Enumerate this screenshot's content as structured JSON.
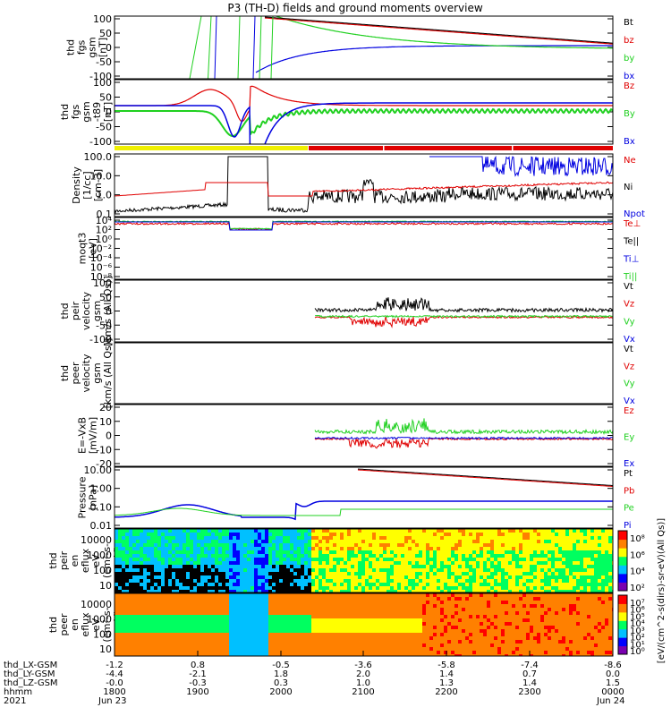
{
  "title": "P3 (TH-D) fields and ground moments overview",
  "colors": {
    "black": "#000000",
    "red": "#e00000",
    "green": "#20d020",
    "blue": "#0000e0",
    "yellow": "#f0f000"
  },
  "chart_data": [
    {
      "type": "line",
      "ylabel": [
        "thd",
        "fgs",
        "gsm",
        "[nT]"
      ],
      "yticks": [
        "100",
        "50",
        "0",
        "-50",
        "-100"
      ],
      "ylim": [
        -100,
        100
      ],
      "legend": [
        {
          "name": "Bt",
          "color": "#000000"
        },
        {
          "name": "bz",
          "color": "#e00000"
        },
        {
          "name": "by",
          "color": "#20d020"
        },
        {
          "name": "bx",
          "color": "#0000e0"
        }
      ]
    },
    {
      "type": "line",
      "ylabel": [
        "thd",
        "fgs",
        "gsm",
        "-t89",
        "[nT]"
      ],
      "yticks": [
        "100",
        "50",
        "0",
        "-50",
        "-100"
      ],
      "ylim": [
        -120,
        120
      ],
      "legend": [
        {
          "name": "Bz",
          "color": "#e00000"
        },
        {
          "name": "By",
          "color": "#20d020"
        },
        {
          "name": "Bx",
          "color": "#0000e0"
        }
      ]
    },
    {
      "type": "line",
      "ylabel": [
        "Density",
        "[1/cc]",
        "[cm-3]"
      ],
      "yticks": [
        "100.0",
        "10.0",
        "1.0",
        "0.1"
      ],
      "log": true,
      "legend": [
        {
          "name": "Ne",
          "color": "#e00000"
        },
        {
          "name": "Ni",
          "color": "#000000"
        },
        {
          "name": "Npot",
          "color": "#0000e0"
        }
      ]
    },
    {
      "type": "line",
      "ylabel": [
        "moqt3",
        "[eV]"
      ],
      "yticks": [
        "10⁴",
        "10²",
        "10⁰",
        "10⁻²",
        "10⁻⁴",
        "10⁻⁶",
        "10⁻⁸"
      ],
      "log": true,
      "legend": [
        {
          "name": "Te⊥",
          "color": "#e00000"
        },
        {
          "name": "Te||",
          "color": "#000000"
        },
        {
          "name": "Ti⊥",
          "color": "#0000e0"
        },
        {
          "name": "Ti||",
          "color": "#20d020"
        }
      ]
    },
    {
      "type": "line",
      "ylabel": [
        "thd",
        "peir",
        "velocity",
        "gsm",
        "[km/s (All Qs)]"
      ],
      "yticks": [
        "100",
        "50",
        "0",
        "-50",
        "-100"
      ],
      "ylim": [
        -100,
        100
      ],
      "legend": [
        {
          "name": "Vt",
          "color": "#000000"
        },
        {
          "name": "Vz",
          "color": "#e00000"
        },
        {
          "name": "Vy",
          "color": "#20d020"
        },
        {
          "name": "Vx",
          "color": "#0000e0"
        }
      ]
    },
    {
      "type": "line",
      "ylabel": [
        "thd",
        "peer",
        "velocity",
        "gsm",
        "[km/s (All Qs)]"
      ],
      "yticks": [],
      "legend": [
        {
          "name": "Vt",
          "color": "#000000"
        },
        {
          "name": "Vz",
          "color": "#e00000"
        },
        {
          "name": "Vy",
          "color": "#20d020"
        },
        {
          "name": "Vx",
          "color": "#0000e0"
        }
      ]
    },
    {
      "type": "line",
      "ylabel": [
        "E=-VxB",
        "[mV/m]"
      ],
      "yticks": [
        "20",
        "10",
        "0",
        "-10",
        "-20"
      ],
      "ylim": [
        -20,
        20
      ],
      "legend": [
        {
          "name": "Ez",
          "color": "#e00000"
        },
        {
          "name": "Ey",
          "color": "#20d020"
        },
        {
          "name": "Ex",
          "color": "#0000e0"
        }
      ]
    },
    {
      "type": "line",
      "ylabel": [
        "Pressure",
        "[nPa]"
      ],
      "yticks": [
        "10.00",
        "1.00",
        "0.10",
        "0.01"
      ],
      "log": true,
      "legend": [
        {
          "name": "Pt",
          "color": "#000000"
        },
        {
          "name": "Pb",
          "color": "#e00000"
        },
        {
          "name": "Pe",
          "color": "#20d020"
        },
        {
          "name": "Pi",
          "color": "#0000e0"
        }
      ]
    },
    {
      "type": "heatmap",
      "ylabel": [
        "thd",
        "peir",
        "en",
        "eflux",
        "eV",
        "(cm²-s-",
        "sr-eV)"
      ],
      "yticks": [
        "10000",
        "1000",
        "100",
        "10"
      ],
      "colorbar_ticks": [
        "10⁸",
        "10⁶",
        "10⁴",
        "10²"
      ]
    },
    {
      "type": "heatmap",
      "ylabel": [
        "thd",
        "peer",
        "en",
        "eflux",
        "eV",
        "(cm²-s-",
        "sr-eV)"
      ],
      "yticks": [
        "10000",
        "1000",
        "100",
        "10"
      ],
      "colorbar_ticks": [
        "10⁷",
        "10⁶",
        "10⁵",
        "10⁴",
        "10³",
        "10²",
        "10¹",
        "10⁰"
      ]
    }
  ],
  "colorbar_label": "[eV/(cm^2-s(dirs)-sr-eV)(All Qs)]",
  "xaxis": {
    "rows": [
      {
        "label": "thd_LX-GSM",
        "values": [
          "-1.2",
          "0.8",
          "-0.5",
          "-3.6",
          "-5.8",
          "-7.4",
          "-8.6"
        ]
      },
      {
        "label": "thd_LY-GSM",
        "values": [
          "-4.4",
          "-2.1",
          "1.8",
          "2.0",
          "1.4",
          "0.7",
          "0.0"
        ]
      },
      {
        "label": "thd_LZ-GSM",
        "values": [
          "-0.0",
          "-0.3",
          "0.3",
          "1.0",
          "1.3",
          "1.4",
          "1.5"
        ]
      },
      {
        "label": "hhmm",
        "values": [
          "1800",
          "1900",
          "2000",
          "2100",
          "2200",
          "2300",
          "0000"
        ]
      }
    ],
    "year": "2021",
    "dates": [
      {
        "text": "Jun 23"
      },
      {
        "text": "Jun 24"
      }
    ]
  }
}
